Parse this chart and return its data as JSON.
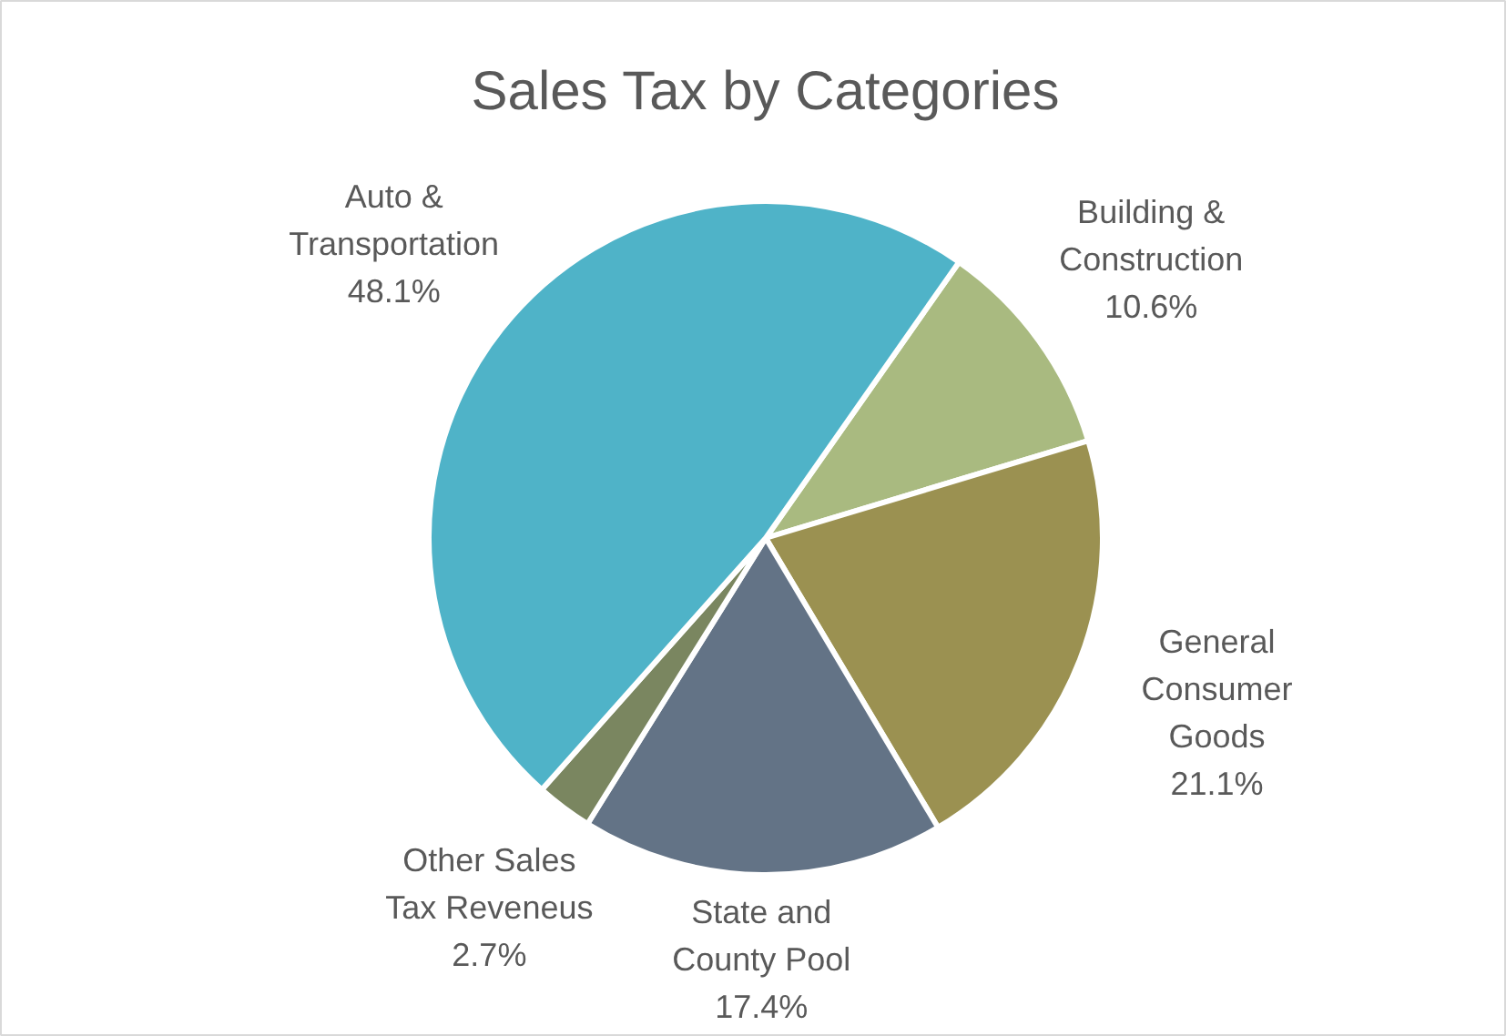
{
  "chart_data": {
    "type": "pie",
    "title": "Sales Tax by Categories",
    "categories": [
      "Building & Construction",
      "General Consumer Goods",
      "State and County Pool",
      "Other Sales Tax Reveneus",
      "Auto & Transportation"
    ],
    "values": [
      10.6,
      21.1,
      17.4,
      2.7,
      48.1
    ],
    "value_labels": [
      "10.6%",
      "21.1%",
      "17.4%",
      "2.7%",
      "48.1%"
    ],
    "colors": [
      "#a9ba80",
      "#9b9151",
      "#637386",
      "#7a8660",
      "#4fb3c8"
    ]
  }
}
